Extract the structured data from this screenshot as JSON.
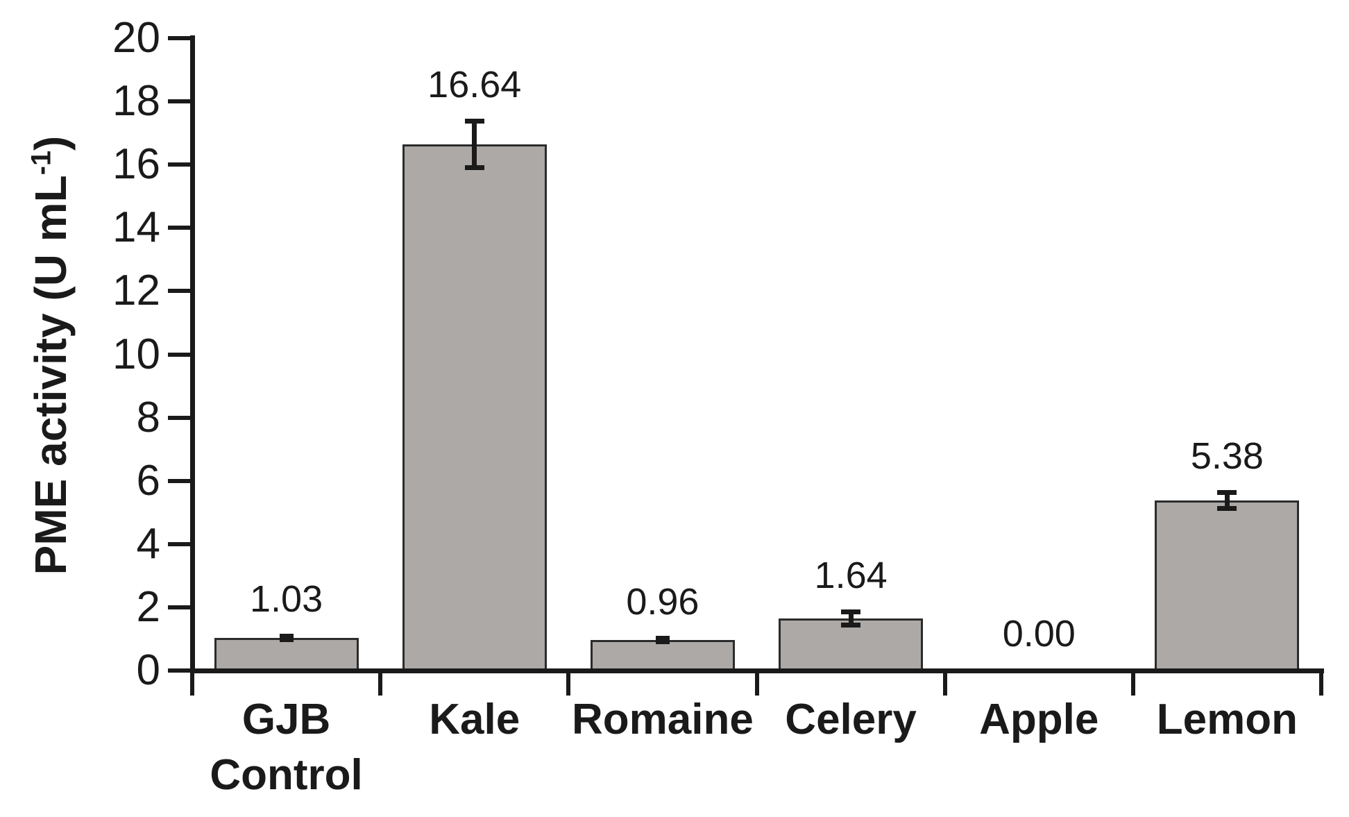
{
  "chart_data": {
    "type": "bar",
    "title": "",
    "xlabel": "",
    "ylabel_prefix": "PME activity (U mL",
    "ylabel_sup": "-1",
    "ylabel_suffix": ")",
    "ylim": [
      0,
      20
    ],
    "ytick_step": 2,
    "ytick_labels": [
      "0",
      "2",
      "4",
      "6",
      "8",
      "10",
      "12",
      "14",
      "16",
      "18",
      "20"
    ],
    "categories": [
      [
        "GJB",
        "Control"
      ],
      [
        "Kale"
      ],
      [
        "Romaine"
      ],
      [
        "Celery"
      ],
      [
        "Apple"
      ],
      [
        "Lemon"
      ]
    ],
    "values": [
      1.03,
      16.64,
      0.96,
      1.64,
      0.0,
      5.38
    ],
    "data_labels": [
      "1.03",
      "16.64",
      "0.96",
      "1.64",
      "0.00",
      "5.38"
    ],
    "errors": [
      0.06,
      0.73,
      0.05,
      0.21,
      0,
      0.25
    ],
    "grid": false,
    "legend": false,
    "colors": {
      "bar_fill": "#aca9a6",
      "bar_border": "#2b2b2b",
      "axis": "#1a1a1a",
      "text": "#1a1a1a",
      "background": "#ffffff"
    }
  }
}
